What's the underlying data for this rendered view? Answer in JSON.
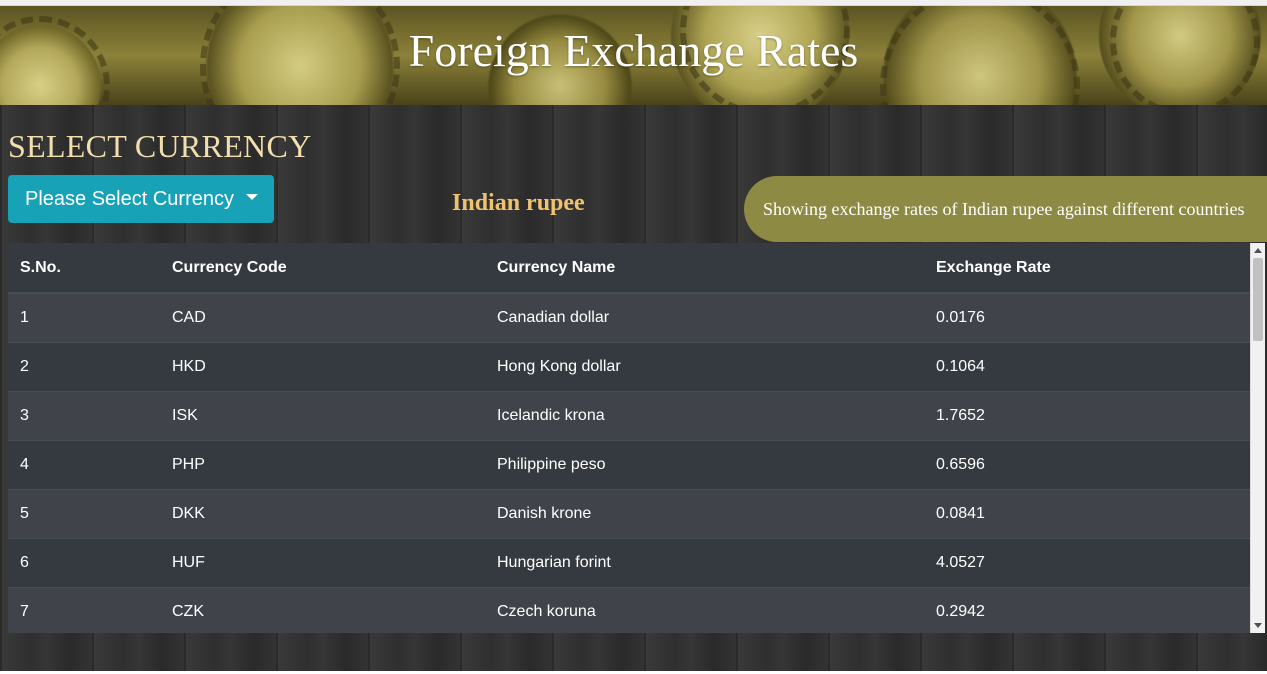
{
  "header": {
    "title": "Foreign Exchange Rates"
  },
  "selector": {
    "heading": "SELECT CURRENCY",
    "dropdown_label": "Please Select Currency",
    "selected_currency": "Indian rupee",
    "info_text": "Showing exchange rates of Indian rupee against different countries"
  },
  "table": {
    "columns": [
      "S.No.",
      "Currency Code",
      "Currency Name",
      "Exchange Rate"
    ],
    "rows": [
      [
        "1",
        "CAD",
        "Canadian dollar",
        "0.0176"
      ],
      [
        "2",
        "HKD",
        "Hong Kong dollar",
        "0.1064"
      ],
      [
        "3",
        "ISK",
        "Icelandic krona",
        "1.7652"
      ],
      [
        "4",
        "PHP",
        "Philippine peso",
        "0.6596"
      ],
      [
        "5",
        "DKK",
        "Danish krone",
        "0.0841"
      ],
      [
        "6",
        "HUF",
        "Hungarian forint",
        "4.0527"
      ],
      [
        "7",
        "CZK",
        "Czech koruna",
        "0.2942"
      ]
    ]
  },
  "colors": {
    "dropdown_bg": "#17a2b8",
    "heading": "#f3dfae",
    "selected_currency": "#f0c26e",
    "info_pill": "#8d8a43",
    "table_dark": "#343a40"
  }
}
